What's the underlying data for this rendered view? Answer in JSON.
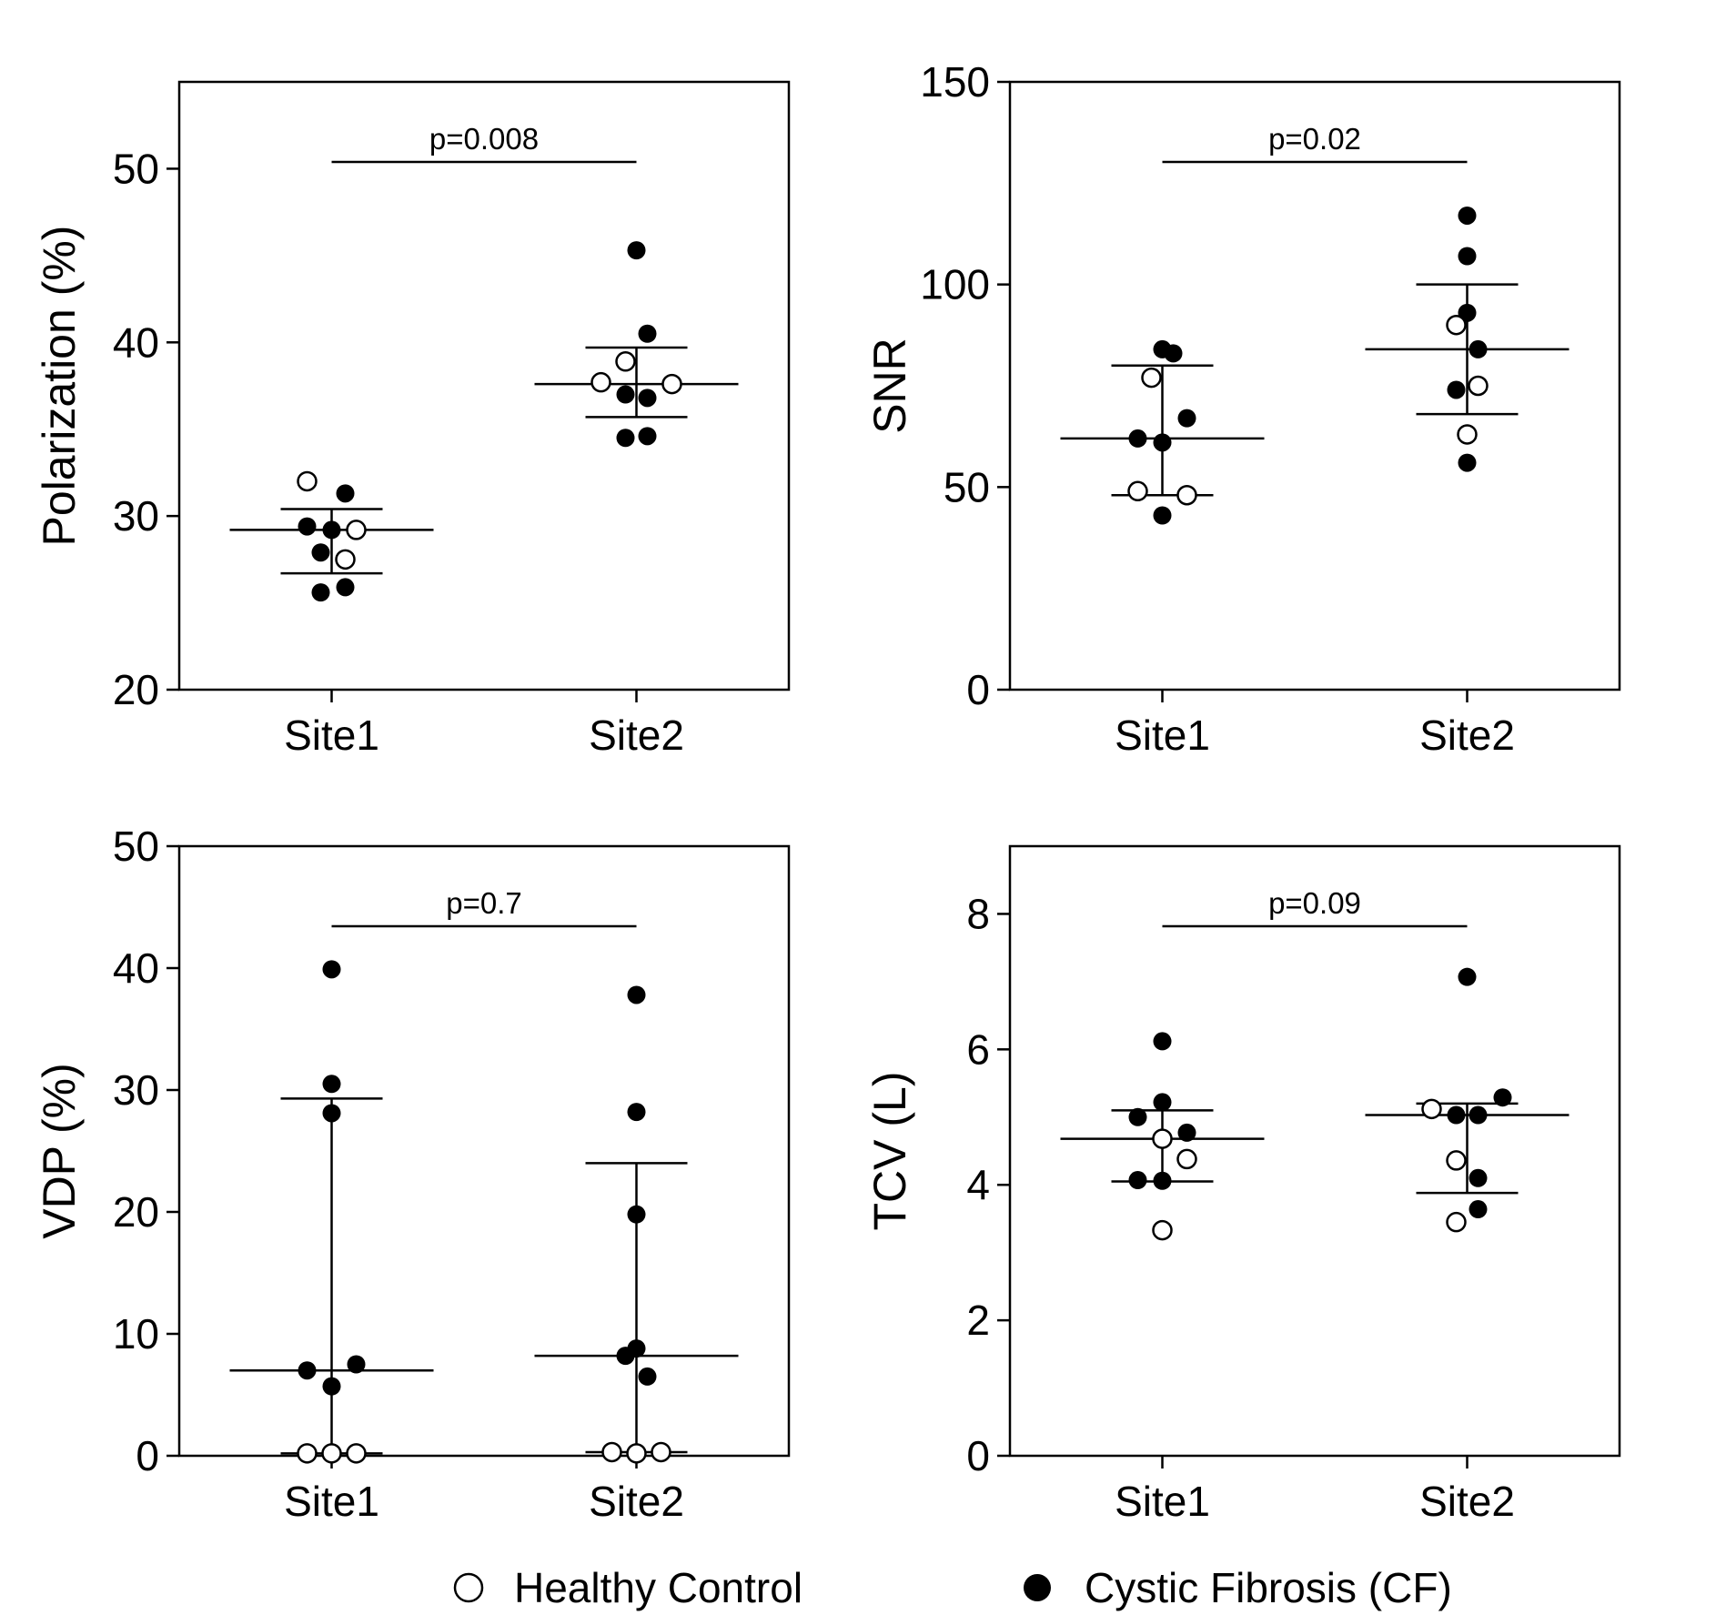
{
  "legend": {
    "healthy_label": "Healthy Control",
    "cf_label": "Cystic Fibrosis (CF)"
  },
  "colors": {
    "ink": "#000000",
    "background": "#ffffff"
  },
  "chart_data": [
    {
      "type": "scatter",
      "ylabel": "Polarization (%)",
      "categories": [
        "Site1",
        "Site2"
      ],
      "ylim": [
        20,
        55
      ],
      "yticks": [
        20,
        30,
        40,
        50
      ],
      "p_value": "p=0.008",
      "series": [
        {
          "group": "Site1",
          "median": 29.2,
          "q1": 26.7,
          "q3": 30.4,
          "points": [
            {
              "v": 32.0,
              "hc": true,
              "dx": -0.09
            },
            {
              "v": 31.3,
              "hc": false,
              "dx": 0.05
            },
            {
              "v": 29.4,
              "hc": false,
              "dx": -0.09
            },
            {
              "v": 29.2,
              "hc": false,
              "dx": 0.0
            },
            {
              "v": 29.2,
              "hc": true,
              "dx": 0.09
            },
            {
              "v": 27.9,
              "hc": false,
              "dx": -0.04
            },
            {
              "v": 27.5,
              "hc": true,
              "dx": 0.05
            },
            {
              "v": 25.9,
              "hc": false,
              "dx": 0.05
            },
            {
              "v": 25.6,
              "hc": false,
              "dx": -0.04
            }
          ]
        },
        {
          "group": "Site2",
          "median": 37.6,
          "q1": 35.7,
          "q3": 39.7,
          "points": [
            {
              "v": 45.3,
              "hc": false,
              "dx": 0.0
            },
            {
              "v": 40.5,
              "hc": false,
              "dx": 0.04
            },
            {
              "v": 38.9,
              "hc": true,
              "dx": -0.04
            },
            {
              "v": 37.7,
              "hc": true,
              "dx": -0.13
            },
            {
              "v": 37.6,
              "hc": true,
              "dx": 0.13
            },
            {
              "v": 37.0,
              "hc": false,
              "dx": -0.04
            },
            {
              "v": 36.8,
              "hc": false,
              "dx": 0.04
            },
            {
              "v": 34.6,
              "hc": false,
              "dx": 0.04
            },
            {
              "v": 34.5,
              "hc": false,
              "dx": -0.04
            }
          ]
        }
      ]
    },
    {
      "type": "scatter",
      "ylabel": "SNR",
      "categories": [
        "Site1",
        "Site2"
      ],
      "ylim": [
        0,
        150
      ],
      "yticks": [
        0,
        50,
        100,
        150
      ],
      "p_value": "p=0.02",
      "series": [
        {
          "group": "Site1",
          "median": 62.0,
          "q1": 48.0,
          "q3": 80.0,
          "points": [
            {
              "v": 84.0,
              "hc": false,
              "dx": 0.0
            },
            {
              "v": 83.0,
              "hc": false,
              "dx": 0.04
            },
            {
              "v": 77.0,
              "hc": true,
              "dx": -0.04
            },
            {
              "v": 67.0,
              "hc": false,
              "dx": 0.09
            },
            {
              "v": 62.0,
              "hc": false,
              "dx": -0.09
            },
            {
              "v": 61.0,
              "hc": false,
              "dx": 0.0
            },
            {
              "v": 49.0,
              "hc": true,
              "dx": -0.09
            },
            {
              "v": 48.0,
              "hc": true,
              "dx": 0.09
            },
            {
              "v": 43.0,
              "hc": false,
              "dx": 0.0
            }
          ]
        },
        {
          "group": "Site2",
          "median": 84.0,
          "q1": 68.0,
          "q3": 100.0,
          "points": [
            {
              "v": 117.0,
              "hc": false,
              "dx": 0.0
            },
            {
              "v": 107.0,
              "hc": false,
              "dx": 0.0
            },
            {
              "v": 93.0,
              "hc": false,
              "dx": 0.0
            },
            {
              "v": 90.0,
              "hc": true,
              "dx": -0.04
            },
            {
              "v": 84.0,
              "hc": false,
              "dx": 0.04
            },
            {
              "v": 75.0,
              "hc": true,
              "dx": 0.04
            },
            {
              "v": 74.0,
              "hc": false,
              "dx": -0.04
            },
            {
              "v": 63.0,
              "hc": true,
              "dx": 0.0
            },
            {
              "v": 56.0,
              "hc": false,
              "dx": 0.0
            }
          ]
        }
      ]
    },
    {
      "type": "scatter",
      "ylabel": "VDP (%)",
      "categories": [
        "Site1",
        "Site2"
      ],
      "ylim": [
        0,
        50
      ],
      "yticks": [
        0,
        10,
        20,
        30,
        40,
        50
      ],
      "p_value": "p=0.7",
      "series": [
        {
          "group": "Site1",
          "median": 7.0,
          "q1": 0.2,
          "q3": 29.3,
          "points": [
            {
              "v": 39.9,
              "hc": false,
              "dx": 0.0
            },
            {
              "v": 30.5,
              "hc": false,
              "dx": 0.0
            },
            {
              "v": 28.1,
              "hc": false,
              "dx": 0.0
            },
            {
              "v": 7.5,
              "hc": false,
              "dx": 0.09
            },
            {
              "v": 7.0,
              "hc": false,
              "dx": -0.09
            },
            {
              "v": 5.7,
              "hc": false,
              "dx": 0.0
            },
            {
              "v": 0.2,
              "hc": true,
              "dx": -0.09
            },
            {
              "v": 0.2,
              "hc": true,
              "dx": 0.0
            },
            {
              "v": 0.2,
              "hc": true,
              "dx": 0.09
            }
          ]
        },
        {
          "group": "Site2",
          "median": 8.2,
          "q1": 0.3,
          "q3": 24.0,
          "points": [
            {
              "v": 37.8,
              "hc": false,
              "dx": 0.0
            },
            {
              "v": 28.2,
              "hc": false,
              "dx": 0.0
            },
            {
              "v": 19.8,
              "hc": false,
              "dx": 0.0
            },
            {
              "v": 8.8,
              "hc": false,
              "dx": 0.0
            },
            {
              "v": 8.2,
              "hc": false,
              "dx": -0.04
            },
            {
              "v": 6.5,
              "hc": false,
              "dx": 0.04
            },
            {
              "v": 0.3,
              "hc": true,
              "dx": -0.09
            },
            {
              "v": 0.2,
              "hc": true,
              "dx": 0.0
            },
            {
              "v": 0.3,
              "hc": true,
              "dx": 0.09
            }
          ]
        }
      ]
    },
    {
      "type": "scatter",
      "ylabel": "TCV (L)",
      "categories": [
        "Site1",
        "Site2"
      ],
      "ylim": [
        0,
        9
      ],
      "yticks": [
        0,
        2,
        4,
        6,
        8
      ],
      "p_value": "p=0.09",
      "series": [
        {
          "group": "Site1",
          "median": 4.68,
          "q1": 4.05,
          "q3": 5.1,
          "points": [
            {
              "v": 6.12,
              "hc": false,
              "dx": 0.0
            },
            {
              "v": 5.22,
              "hc": false,
              "dx": 0.0
            },
            {
              "v": 5.0,
              "hc": false,
              "dx": -0.09
            },
            {
              "v": 4.77,
              "hc": false,
              "dx": 0.09
            },
            {
              "v": 4.68,
              "hc": true,
              "dx": 0.0
            },
            {
              "v": 4.38,
              "hc": true,
              "dx": 0.09
            },
            {
              "v": 4.07,
              "hc": false,
              "dx": -0.09
            },
            {
              "v": 4.06,
              "hc": false,
              "dx": 0.0
            },
            {
              "v": 3.33,
              "hc": true,
              "dx": 0.0
            }
          ]
        },
        {
          "group": "Site2",
          "median": 5.03,
          "q1": 3.88,
          "q3": 5.2,
          "points": [
            {
              "v": 7.07,
              "hc": false,
              "dx": 0.0
            },
            {
              "v": 5.29,
              "hc": false,
              "dx": 0.13
            },
            {
              "v": 5.12,
              "hc": true,
              "dx": -0.13
            },
            {
              "v": 5.03,
              "hc": false,
              "dx": -0.04
            },
            {
              "v": 5.03,
              "hc": false,
              "dx": 0.04
            },
            {
              "v": 4.36,
              "hc": true,
              "dx": -0.04
            },
            {
              "v": 4.1,
              "hc": false,
              "dx": 0.04
            },
            {
              "v": 3.64,
              "hc": false,
              "dx": 0.04
            },
            {
              "v": 3.45,
              "hc": true,
              "dx": -0.04
            }
          ]
        }
      ]
    }
  ]
}
